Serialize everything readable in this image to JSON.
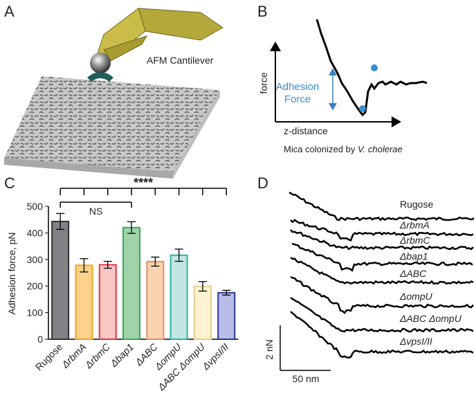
{
  "panel_labels": [
    "A",
    "B",
    "C",
    "D"
  ],
  "panel_a": {
    "cantilever_label": "AFM Cantilever"
  },
  "panel_b": {
    "y_axis_label": "force",
    "x_axis_label": "z-distance",
    "annotation": [
      "Adhesion",
      "Force"
    ],
    "caption": "Mica colonized by ",
    "caption_species": "V. cholerae"
  },
  "chart_data": {
    "type": "bar",
    "ylabel": "Adhesion force, pN",
    "categories": [
      "Rugose",
      "ΔrbmA",
      "ΔrbmC",
      "Δbap1",
      "ΔABC",
      "ΔompU",
      "ΔABC ΔompU",
      "ΔvpsI/II"
    ],
    "values": [
      443,
      278,
      280,
      420,
      292,
      316,
      199,
      175
    ],
    "errors": [
      30,
      25,
      13,
      22,
      17,
      23,
      18,
      9
    ],
    "colors": [
      "#808285",
      "#fdd28a",
      "#f9c6c6",
      "#9fd4a8",
      "#fbd3b0",
      "#c3e6e2",
      "#fdf3d0",
      "#b7bde6"
    ],
    "edge_colors": [
      "#333333",
      "#f7a21b",
      "#e8343f",
      "#3aa655",
      "#e09060",
      "#2bb3a5",
      "#e0cf8e",
      "#2a3590"
    ],
    "ylim": [
      0,
      500
    ],
    "yticks": [
      0,
      100,
      200,
      300,
      400,
      500
    ],
    "significance": {
      "all": "****",
      "bap1": "NS"
    }
  },
  "panel_d": {
    "trace_labels": [
      "Rugose",
      "ΔrbmA",
      "ΔrbmC",
      "Δbap1",
      "ΔABC",
      "ΔompU",
      "ΔABC ΔompU",
      "ΔvpsI/II"
    ],
    "scale_y": "2 nN",
    "scale_x": "50 nm"
  }
}
